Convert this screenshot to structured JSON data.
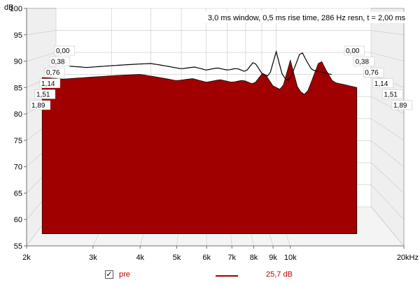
{
  "chart_data": {
    "type": "area",
    "title": "",
    "header": "3,0 ms window, 0,5 ms rise time,  286 Hz resn, t = 2,00 ms",
    "ylabel": "dB",
    "ylim": [
      55,
      100
    ],
    "yticks": [
      "55",
      "60",
      "65",
      "70",
      "75",
      "80",
      "85",
      "90",
      "95",
      "100"
    ],
    "xscale": "log",
    "xlim": [
      2000,
      20000
    ],
    "xticks": [
      {
        "label": "2k",
        "v": 2000
      },
      {
        "label": "3k",
        "v": 3000
      },
      {
        "label": "4k",
        "v": 4000
      },
      {
        "label": "5k",
        "v": 5000
      },
      {
        "label": "6k",
        "v": 6000
      },
      {
        "label": "7k",
        "v": 7000
      },
      {
        "label": "8k",
        "v": 8000
      },
      {
        "label": "9k",
        "v": 9000
      },
      {
        "label": "10k",
        "v": 10000
      },
      {
        "label": "20kHz",
        "v": 20000
      }
    ],
    "time_labels": [
      "0,00",
      "0,38",
      "0,76",
      "1,14",
      "1,51",
      "1,89"
    ],
    "time_range_ms": [
      0,
      2.0
    ],
    "grid": true,
    "front_slice": {
      "time_ms": 0,
      "x": [
        2200,
        2500,
        3000,
        3500,
        4000,
        4500,
        5000,
        5500,
        6000,
        6500,
        7000,
        7500,
        8000,
        8500,
        9000,
        9500,
        10000,
        10500,
        11000,
        11500,
        12000,
        12500,
        13000,
        14000,
        15000
      ],
      "y": [
        86.9,
        86.6,
        87.0,
        87.3,
        87.5,
        86.9,
        86.3,
        86.7,
        86.0,
        86.5,
        86.0,
        86.4,
        85.6,
        88.0,
        85.3,
        84.5,
        90.2,
        84.5,
        83.5,
        87.0,
        90.5,
        88.0,
        86.0,
        85.5,
        85.0
      ]
    },
    "series": [
      {
        "name": "pre",
        "value_label": "25,7 dB",
        "color": "#a00000"
      }
    ]
  },
  "legend": {
    "check": "✓",
    "name": "pre",
    "value": "25,7 dB"
  }
}
